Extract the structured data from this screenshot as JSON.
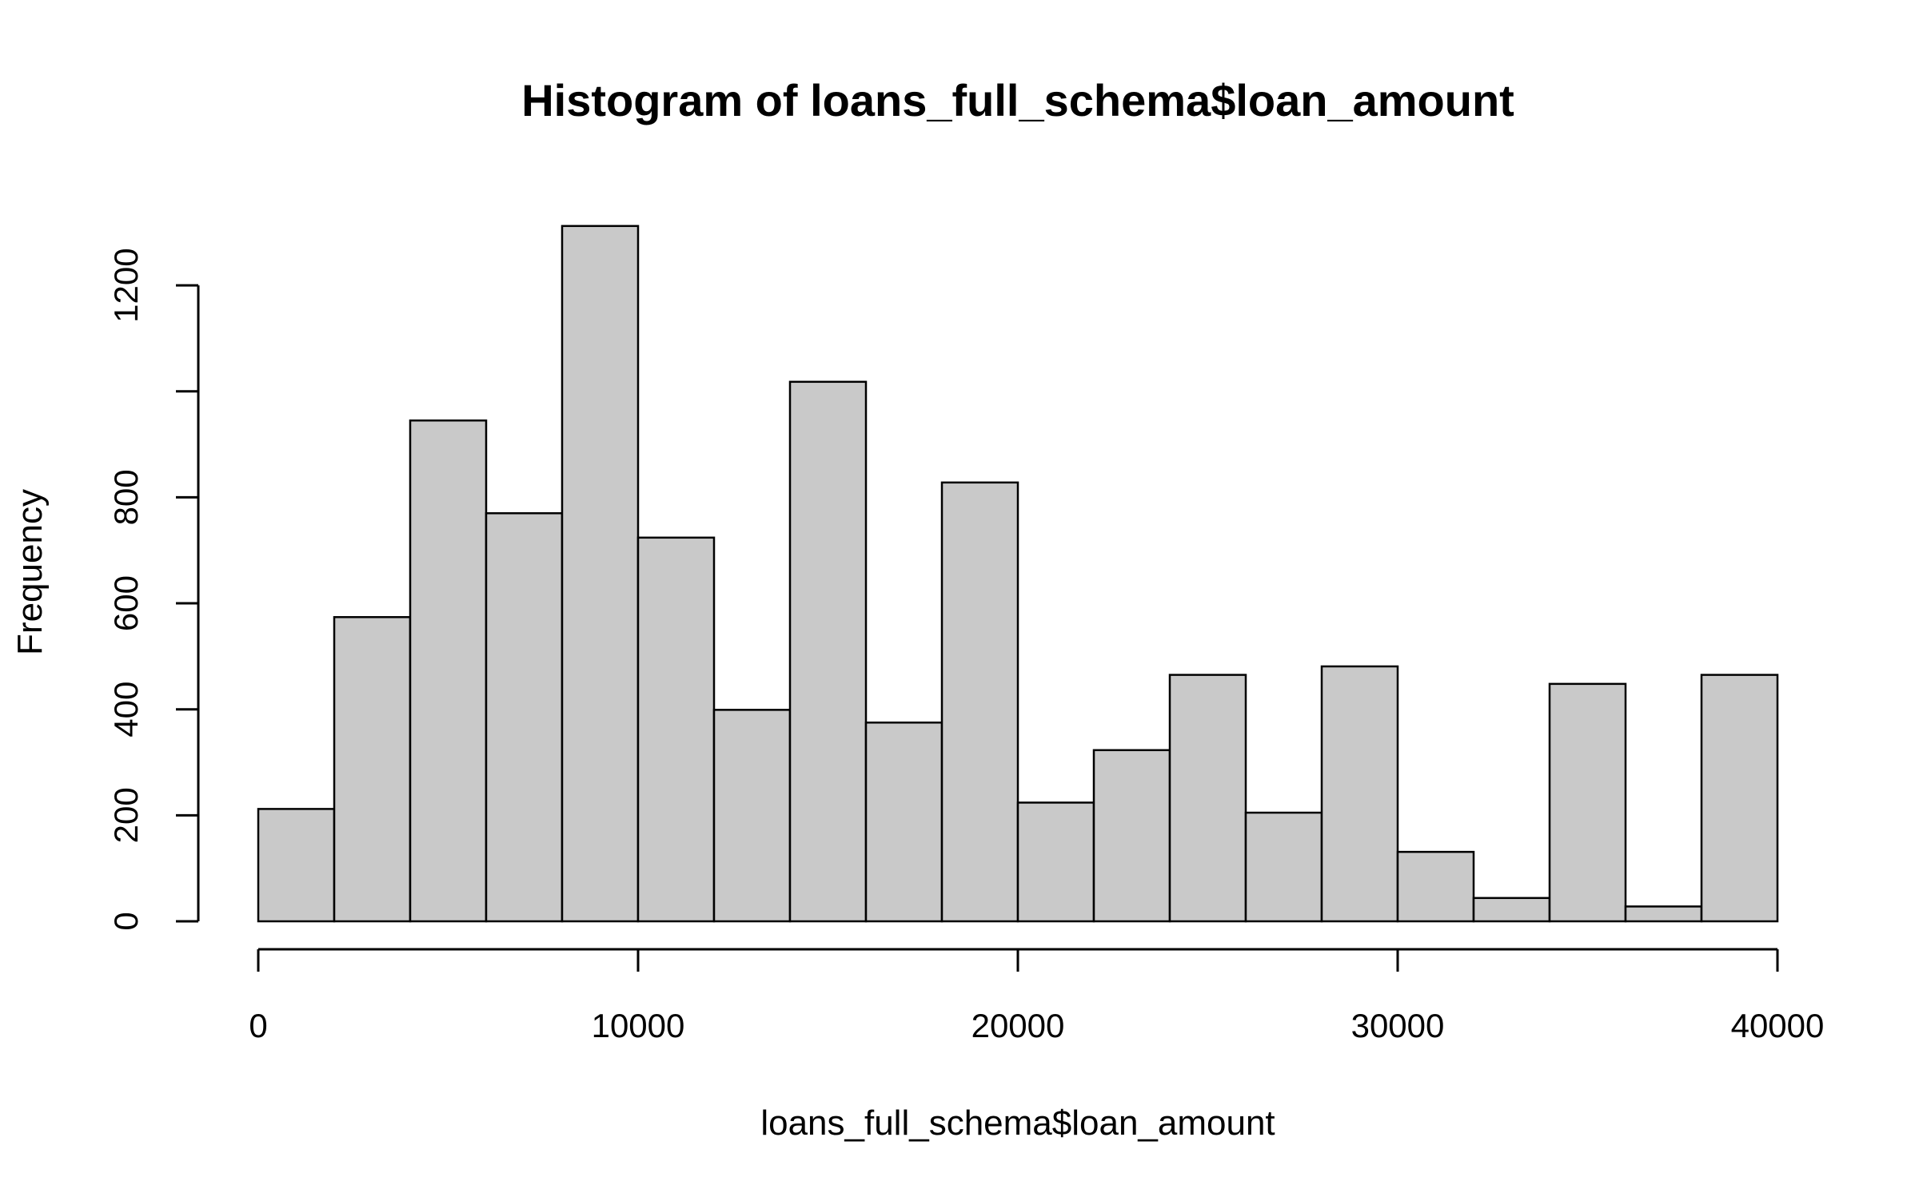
{
  "chart_data": {
    "type": "bar",
    "title": "Histogram of loans_full_schema$loan_amount",
    "xlabel": "loans_full_schema$loan_amount",
    "ylabel": "Frequency",
    "bin_width": 2000,
    "bins": [
      {
        "x0": 0,
        "x1": 2000,
        "count": 212
      },
      {
        "x0": 2000,
        "x1": 4000,
        "count": 574
      },
      {
        "x0": 4000,
        "x1": 6000,
        "count": 945
      },
      {
        "x0": 6000,
        "x1": 8000,
        "count": 770
      },
      {
        "x0": 8000,
        "x1": 10000,
        "count": 1312
      },
      {
        "x0": 10000,
        "x1": 12000,
        "count": 724
      },
      {
        "x0": 12000,
        "x1": 14000,
        "count": 399
      },
      {
        "x0": 14000,
        "x1": 16000,
        "count": 1018
      },
      {
        "x0": 16000,
        "x1": 18000,
        "count": 375
      },
      {
        "x0": 18000,
        "x1": 20000,
        "count": 828
      },
      {
        "x0": 20000,
        "x1": 22000,
        "count": 224
      },
      {
        "x0": 22000,
        "x1": 24000,
        "count": 323
      },
      {
        "x0": 24000,
        "x1": 26000,
        "count": 465
      },
      {
        "x0": 26000,
        "x1": 28000,
        "count": 205
      },
      {
        "x0": 28000,
        "x1": 30000,
        "count": 481
      },
      {
        "x0": 30000,
        "x1": 32000,
        "count": 131
      },
      {
        "x0": 32000,
        "x1": 34000,
        "count": 44
      },
      {
        "x0": 34000,
        "x1": 36000,
        "count": 448
      },
      {
        "x0": 36000,
        "x1": 38000,
        "count": 28
      },
      {
        "x0": 38000,
        "x1": 40000,
        "count": 465
      }
    ],
    "xlim": [
      0,
      40000
    ],
    "ylim": [
      0,
      1312
    ],
    "x_ticks": [
      0,
      10000,
      20000,
      30000,
      40000
    ],
    "x_tick_labels": [
      "0",
      "10000",
      "20000",
      "30000",
      "40000"
    ],
    "y_ticks": [
      0,
      200,
      400,
      600,
      800,
      1000,
      1200
    ],
    "y_tick_labels": [
      "0",
      "200",
      "400",
      "600",
      "800",
      "",
      "1200"
    ],
    "grid": false,
    "legend": "none",
    "colors": {
      "bar_fill": "#c9c9c9",
      "bar_stroke": "#000000",
      "axis": "#000000",
      "text": "#000000"
    }
  }
}
